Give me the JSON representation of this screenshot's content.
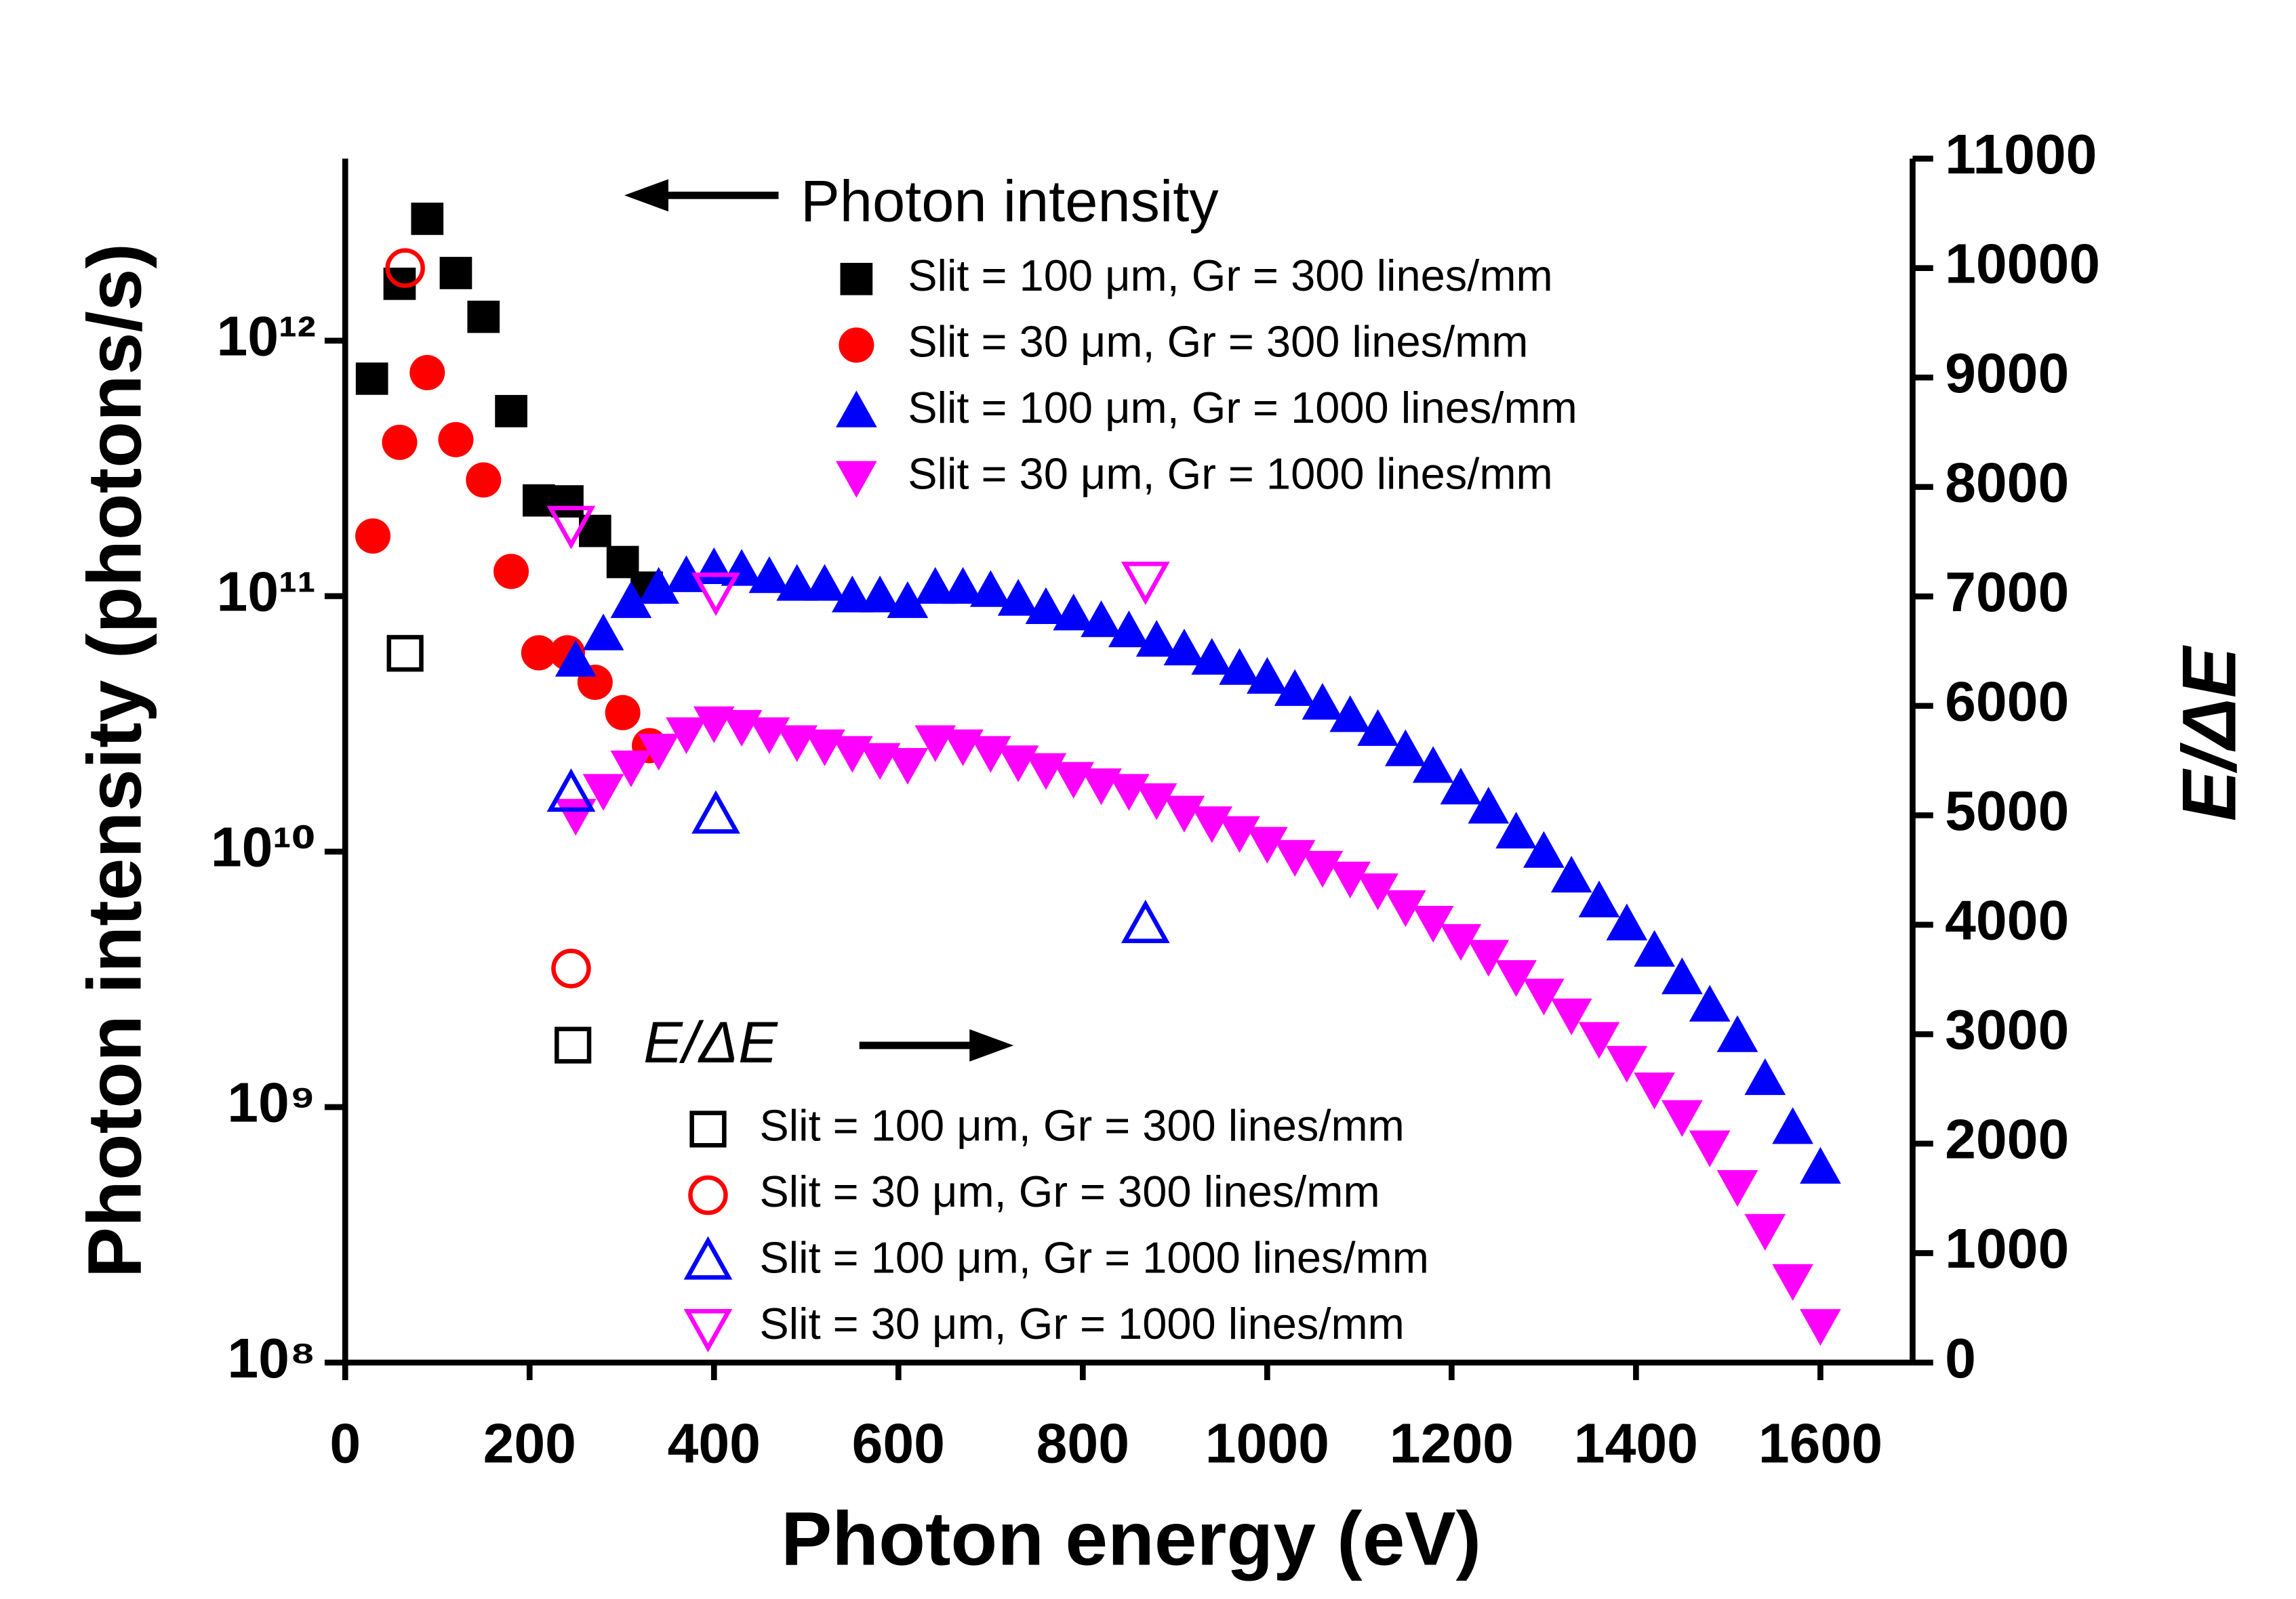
{
  "chart_data": {
    "type": "scatter",
    "xlabel": "Photon energy (eV)",
    "ylabel": "Photon intensity (photons/s)",
    "y2label": "E/ΔE",
    "legend_titles": [
      "Photon intensity",
      "E/ΔE"
    ],
    "xlim": [
      0,
      1700
    ],
    "xticks": [
      0,
      200,
      400,
      600,
      800,
      1000,
      1200,
      1400,
      1600
    ],
    "yscale": "log",
    "ylim": [
      100000000,
      5160000000000
    ],
    "yticks": [
      {
        "value": 100000000,
        "label": "10⁸"
      },
      {
        "value": 1000000000,
        "label": "10⁹"
      },
      {
        "value": 10000000000,
        "label": "10¹⁰"
      },
      {
        "value": 100000000000,
        "label": "10¹¹"
      },
      {
        "value": 1000000000000,
        "label": "10¹²"
      }
    ],
    "y2lim": [
      0,
      11000
    ],
    "y2ticks": [
      0,
      1000,
      2000,
      3000,
      4000,
      5000,
      6000,
      7000,
      8000,
      9000,
      10000,
      11000
    ],
    "series": [
      {
        "name": "Slit = 100 μm, Gr = 300 lines/mm",
        "color": "#000000",
        "marker": "square",
        "filled": true,
        "x": [
          29,
          59,
          89,
          120,
          150,
          180,
          210,
          241,
          271,
          301,
          327
        ],
        "values": [
          710000000000,
          1670000000000,
          3000000000000,
          1840000000000,
          1240000000000,
          530000000000,
          237000000000,
          235000000000,
          180000000000,
          136000000000,
          108000000000
        ]
      },
      {
        "name": "Slit = 30 μm, Gr = 300 lines/mm",
        "color": "#ff0000",
        "marker": "circle",
        "filled": true,
        "x": [
          30,
          59,
          89,
          120,
          150,
          180,
          210,
          241,
          271,
          301,
          330
        ],
        "values": [
          172000000000,
          400000000000,
          750000000000,
          410000000000,
          285000000000,
          125000000000,
          60000000000,
          60000000000,
          46000000000,
          35000000000,
          26000000000
        ]
      },
      {
        "name": "Slit = 100 μm, Gr = 1000 lines/mm",
        "color": "#0000ff",
        "marker": "triangle-up",
        "filled": true,
        "x": [
          250,
          280,
          310,
          340,
          370,
          400,
          430,
          460,
          490,
          520,
          550,
          580,
          610,
          640,
          670,
          700,
          730,
          760,
          790,
          820,
          850,
          880,
          910,
          940,
          970,
          1000,
          1030,
          1060,
          1090,
          1120,
          1150,
          1180,
          1210,
          1240,
          1270,
          1300,
          1330,
          1360,
          1390,
          1420,
          1450,
          1480,
          1510,
          1540,
          1570,
          1600
        ],
        "values": [
          56000000000,
          71000000000,
          95000000000,
          108000000000,
          120000000000,
          129000000000,
          127000000000,
          119000000000,
          111000000000,
          111000000000,
          100000000000,
          100000000000,
          95000000000,
          108000000000,
          108000000000,
          105000000000,
          97000000000,
          90000000000,
          85000000000,
          80000000000,
          73000000000,
          67000000000,
          62000000000,
          57000000000,
          52000000000,
          48000000000,
          43000000000,
          38000000000,
          34000000000,
          30000000000,
          25000000000,
          21500000000,
          17700000000,
          14900000000,
          11900000000,
          10000000000,
          8000000000,
          6400000000,
          5200000000,
          4100000000,
          3200000000,
          2500000000,
          1900000000,
          1290000000,
          830000000,
          580000000
        ]
      },
      {
        "name": "Slit = 30 μm, Gr = 1000 lines/mm",
        "color": "#ff00ff",
        "marker": "triangle-down",
        "filled": true,
        "x": [
          250,
          280,
          310,
          340,
          370,
          400,
          430,
          460,
          490,
          520,
          550,
          580,
          610,
          640,
          670,
          700,
          730,
          760,
          790,
          820,
          850,
          880,
          910,
          940,
          970,
          1000,
          1030,
          1060,
          1090,
          1120,
          1150,
          1180,
          1210,
          1240,
          1270,
          1300,
          1330,
          1360,
          1390,
          1420,
          1450,
          1480,
          1510,
          1540,
          1570,
          1600
        ],
        "values": [
          13900000000,
          17400000000,
          21500000000,
          25000000000,
          29000000000,
          32000000000,
          31000000000,
          29000000000,
          27000000000,
          26000000000,
          24500000000,
          23000000000,
          22000000000,
          27000000000,
          26000000000,
          24500000000,
          22500000000,
          21000000000,
          19400000000,
          18300000000,
          17400000000,
          16000000000,
          14300000000,
          13000000000,
          11900000000,
          10800000000,
          9600000000,
          8700000000,
          7900000000,
          7100000000,
          6100000000,
          5300000000,
          4500000000,
          3900000000,
          3250000000,
          2750000000,
          2300000000,
          1860000000,
          1500000000,
          1180000000,
          920000000,
          700000000,
          490000000,
          330000000,
          210000000,
          140000000
        ]
      },
      {
        "name": "Slit = 100 μm, Gr = 300 lines/mm",
        "color": "#000000",
        "marker": "square",
        "filled": false,
        "axis": "y2",
        "x": [
          65,
          247
        ],
        "values": [
          6480,
          2900
        ]
      },
      {
        "name": "Slit = 30 μm, Gr = 300 lines/mm",
        "color": "#ff0000",
        "marker": "circle",
        "filled": false,
        "axis": "y2",
        "x": [
          65,
          245
        ],
        "values": [
          10000,
          3600
        ]
      },
      {
        "name": "Slit = 100 μm, Gr = 1000 lines/mm",
        "color": "#0000ff",
        "marker": "triangle-up",
        "filled": false,
        "axis": "y2",
        "x": [
          245,
          402,
          868
        ],
        "values": [
          5200,
          5000,
          4000
        ]
      },
      {
        "name": "Slit = 30 μm, Gr = 1000 lines/mm",
        "color": "#ff00ff",
        "marker": "triangle-down",
        "filled": false,
        "axis": "y2",
        "x": [
          245,
          402,
          868
        ],
        "values": [
          7660,
          7050,
          7150
        ]
      }
    ]
  }
}
